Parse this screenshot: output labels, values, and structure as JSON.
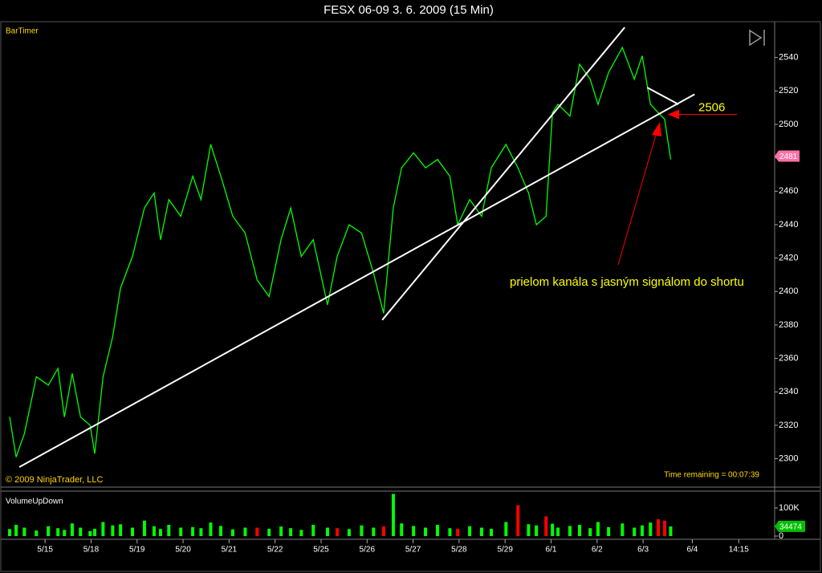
{
  "window": {
    "title": "FESX 06-09  3. 6. 2009 (15 Min)",
    "indicator": "BarTimer",
    "copyright": "© 2009 NinjaTrader, LLC",
    "time_remaining": "Time remaining = 00:07:39"
  },
  "chart_data": [
    {
      "type": "line",
      "x": [
        -0.77,
        -0.63,
        -0.45,
        -0.19,
        0.07,
        0.28,
        0.42,
        0.59,
        0.77,
        0.98,
        1.08,
        1.26,
        1.47,
        1.64,
        1.9,
        2.16,
        2.37,
        2.51,
        2.69,
        2.95,
        3.21,
        3.39,
        3.6,
        3.82,
        4.08,
        4.35,
        4.61,
        4.87,
        5.13,
        5.34,
        5.57,
        5.83,
        6.14,
        6.35,
        6.61,
        6.88,
        7.14,
        7.36,
        7.57,
        7.75,
        8.01,
        8.27,
        8.53,
        8.8,
        8.97,
        9.23,
        9.49,
        9.7,
        10.02,
        10.28,
        10.51,
        10.68,
        10.89,
        11.03,
        11.15,
        11.41,
        11.62,
        11.85,
        12.02,
        12.25,
        12.55,
        12.81,
        12.98,
        13.16,
        13.33,
        13.47,
        13.6
      ],
      "series": [
        {
          "color": "#00ff00",
          "values": [
            2325,
            2301,
            2315,
            2349,
            2344,
            2354,
            2325,
            2351,
            2325,
            2320,
            2303,
            2349,
            2373,
            2402,
            2421,
            2450,
            2459,
            2431,
            2455,
            2445,
            2469,
            2455,
            2488,
            2469,
            2445,
            2435,
            2407,
            2397,
            2431,
            2450,
            2421,
            2431,
            2392,
            2421,
            2440,
            2435,
            2411,
            2387,
            2450,
            2474,
            2483,
            2474,
            2479,
            2469,
            2440,
            2455,
            2445,
            2474,
            2488,
            2474,
            2459,
            2440,
            2445,
            2507,
            2512,
            2505,
            2536,
            2527,
            2512,
            2531,
            2546,
            2527,
            2541,
            2512,
            2507,
            2503,
            2479
          ]
        }
      ],
      "xlim": [
        -0.98,
        15.86
      ],
      "ylim": [
        2283,
        2560
      ],
      "yticks": [
        2300,
        2320,
        2340,
        2360,
        2380,
        2400,
        2420,
        2440,
        2460,
        2480,
        2500,
        2520,
        2540
      ],
      "xticks": [
        {
          "value": 0,
          "label": "5/15"
        },
        {
          "value": 1,
          "label": "5/18"
        },
        {
          "value": 2,
          "label": "5/19"
        },
        {
          "value": 3,
          "label": "5/20"
        },
        {
          "value": 4,
          "label": "5/21"
        },
        {
          "value": 5,
          "label": "5/22"
        },
        {
          "value": 6,
          "label": "5/25"
        },
        {
          "value": 7,
          "label": "5/26"
        },
        {
          "value": 8,
          "label": "5/27"
        },
        {
          "value": 9,
          "label": "5/28"
        },
        {
          "value": 10,
          "label": "5/29"
        },
        {
          "value": 11,
          "label": "6/1"
        },
        {
          "value": 12,
          "label": "6/2"
        },
        {
          "value": 13,
          "label": "6/3"
        },
        {
          "value": 14.07,
          "label": "6/4"
        },
        {
          "value": 15.08,
          "label": "14:15"
        }
      ],
      "last_value": 2481,
      "trendlines": [
        {
          "x": [
            -0.56,
            14.12
          ],
          "y": [
            2295,
            2518
          ],
          "color": "#ffffff"
        },
        {
          "x": [
            7.33,
            12.6
          ],
          "y": [
            2383,
            2558
          ],
          "color": "#ffffff"
        },
        {
          "x": [
            13.09,
            13.77
          ],
          "y": [
            2522,
            2512
          ],
          "color": "#ffffff"
        }
      ],
      "level": {
        "value": 2506,
        "color": "#ff0000"
      },
      "annotation": "prielom kanála s jasným  signálom do shortu"
    },
    {
      "type": "bar",
      "title": "VolumeUpDown",
      "x": [
        -0.77,
        -0.63,
        -0.45,
        -0.19,
        0.07,
        0.28,
        0.42,
        0.59,
        0.77,
        0.98,
        1.08,
        1.26,
        1.47,
        1.64,
        1.9,
        2.16,
        2.37,
        2.51,
        2.69,
        2.95,
        3.21,
        3.39,
        3.6,
        3.82,
        4.08,
        4.35,
        4.61,
        4.87,
        5.13,
        5.34,
        5.57,
        5.83,
        6.14,
        6.35,
        6.61,
        6.88,
        7.14,
        7.36,
        7.57,
        7.75,
        8.01,
        8.27,
        8.53,
        8.8,
        8.97,
        9.23,
        9.49,
        9.7,
        10.02,
        10.28,
        10.51,
        10.68,
        10.89,
        11.03,
        11.15,
        11.41,
        11.62,
        11.85,
        12.02,
        12.25,
        12.55,
        12.81,
        12.98,
        13.16,
        13.33,
        13.47,
        13.6
      ],
      "series": [
        {
          "color": "#00ff00",
          "values": [
            25000,
            40000,
            30000,
            20000,
            35000,
            28000,
            22000,
            45000,
            30000,
            18000,
            26000,
            50000,
            38000,
            42000,
            30000,
            55000,
            35000,
            25000,
            40000,
            30000,
            32000,
            28000,
            48000,
            36000,
            24000,
            30000,
            null,
            26000,
            34000,
            28000,
            22000,
            40000,
            30000,
            null,
            25000,
            38000,
            30000,
            null,
            150000,
            45000,
            36000,
            30000,
            40000,
            28000,
            null,
            35000,
            30000,
            26000,
            50000,
            null,
            42000,
            38000,
            null,
            44000,
            30000,
            36000,
            40000,
            28000,
            50000,
            32000,
            45000,
            30000,
            38000,
            48000,
            null,
            null,
            34474
          ]
        },
        {
          "color": "#ff0000",
          "values": [
            null,
            null,
            null,
            null,
            null,
            null,
            null,
            null,
            null,
            null,
            null,
            null,
            null,
            null,
            null,
            null,
            null,
            null,
            null,
            null,
            null,
            null,
            null,
            null,
            null,
            null,
            30000,
            null,
            null,
            null,
            null,
            null,
            null,
            28000,
            null,
            null,
            null,
            35000,
            null,
            null,
            null,
            null,
            null,
            null,
            26000,
            null,
            null,
            null,
            null,
            110000,
            null,
            null,
            70000,
            null,
            null,
            null,
            null,
            null,
            null,
            null,
            null,
            null,
            null,
            null,
            60000,
            55000,
            null
          ]
        }
      ],
      "xlim": [
        -0.98,
        15.86
      ],
      "ylim": [
        0,
        157000
      ],
      "yticks": [
        0,
        {
          "value": 100000,
          "label": "100K"
        }
      ],
      "last_value": 34474
    }
  ]
}
